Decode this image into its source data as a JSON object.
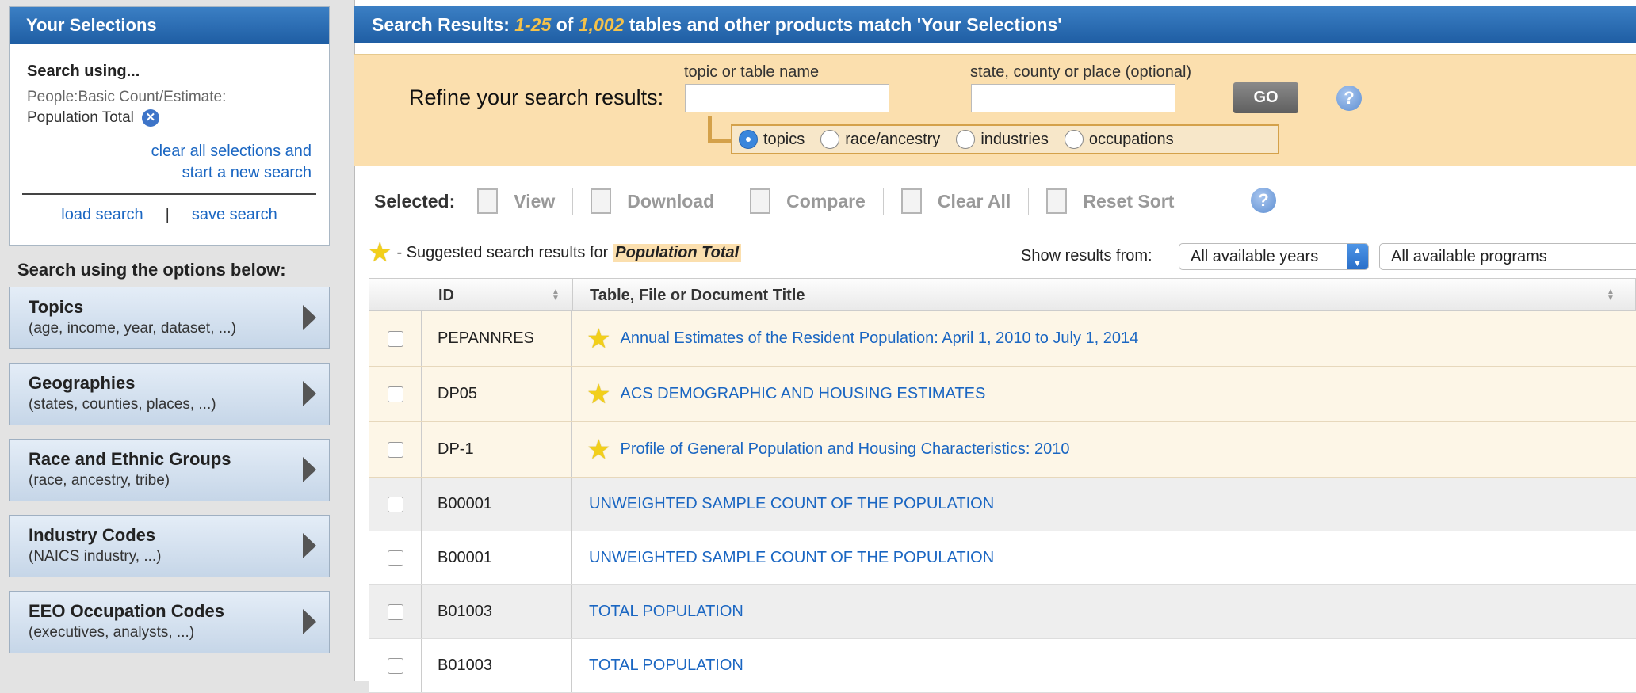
{
  "selections": {
    "heading": "Your Selections",
    "search_using": "Search using...",
    "category": "People:Basic Count/Estimate:",
    "value": "Population Total",
    "clear_line1": "clear all selections and",
    "clear_line2": "start a new search",
    "load": "load search",
    "save": "save search"
  },
  "options": {
    "heading": "Search using the options below:",
    "items": [
      {
        "title": "Topics",
        "sub": "(age, income, year, dataset, ...)"
      },
      {
        "title": "Geographies",
        "sub": "(states, counties, places, ...)"
      },
      {
        "title": "Race and Ethnic Groups",
        "sub": "(race, ancestry, tribe)"
      },
      {
        "title": "Industry Codes",
        "sub": "(NAICS industry, ...)"
      },
      {
        "title": "EEO Occupation Codes",
        "sub": "(executives, analysts, ...)"
      }
    ]
  },
  "results": {
    "prefix": "Search Results:",
    "range": "1-25",
    "of": "of",
    "total": "1,002",
    "suffix": "tables and other products match 'Your Selections'"
  },
  "refine": {
    "label": "Refine your search results:",
    "topic_label": "topic or table name",
    "geo_label": "state, county or place (optional)",
    "go": "GO",
    "radios": [
      {
        "label": "topics",
        "checked": true
      },
      {
        "label": "race/ancestry",
        "checked": false
      },
      {
        "label": "industries",
        "checked": false
      },
      {
        "label": "occupations",
        "checked": false
      }
    ]
  },
  "toolbar": {
    "label": "Selected:",
    "view": "View",
    "download": "Download",
    "compare": "Compare",
    "clear_all": "Clear All",
    "reset_sort": "Reset Sort"
  },
  "suggest": {
    "text": "- Suggested search results for",
    "keyword": "Population Total",
    "show_from": "Show results from:",
    "years": "All available years",
    "programs": "All available programs"
  },
  "table": {
    "col_id": "ID",
    "col_title": "Table, File or Document Title",
    "rows": [
      {
        "id": "PEPANNRES",
        "title": "Annual Estimates of the Resident Population: April 1, 2010 to July 1, 2014"
      },
      {
        "id": "DP05",
        "title": "ACS DEMOGRAPHIC AND HOUSING ESTIMATES"
      },
      {
        "id": "DP-1",
        "title": "Profile of General Population and Housing Characteristics: 2010"
      },
      {
        "id": "B00001",
        "title": "UNWEIGHTED SAMPLE COUNT OF THE POPULATION"
      },
      {
        "id": "B00001",
        "title": "UNWEIGHTED SAMPLE COUNT OF THE POPULATION"
      },
      {
        "id": "B01003",
        "title": "TOTAL POPULATION"
      },
      {
        "id": "B01003",
        "title": "TOTAL POPULATION"
      }
    ]
  }
}
